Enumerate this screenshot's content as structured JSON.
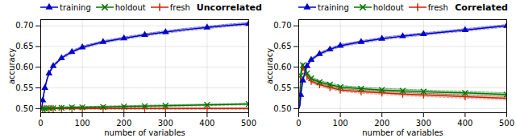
{
  "chart_data": [
    {
      "type": "line",
      "title": "Uncorrelated",
      "xlabel": "number of variables",
      "ylabel": "accuracy",
      "xlim": [
        0,
        500
      ],
      "xticks": [
        0,
        100,
        200,
        300,
        400,
        500
      ],
      "ylim": [
        0.49,
        0.715
      ],
      "yticks": [
        {
          "value": 0.5,
          "label": "0.50"
        },
        0.55,
        {
          "value": 0.6,
          "label": "0.60"
        },
        0.65,
        {
          "value": 0.7,
          "label": "0.70"
        }
      ],
      "grid": true,
      "legend": "upper left",
      "x": [
        1,
        2,
        3,
        4,
        5,
        7,
        10,
        15,
        20,
        30,
        50,
        75,
        100,
        150,
        200,
        250,
        300,
        350,
        400,
        450,
        500
      ],
      "marker_x": [
        5,
        10,
        20,
        30,
        50,
        75,
        100,
        150,
        200,
        250,
        300,
        400,
        500
      ],
      "series": [
        {
          "name": "training",
          "color": "#0000cc",
          "marker": "triangle",
          "values": [
            0.5,
            0.502,
            0.505,
            0.512,
            0.52,
            0.533,
            0.55,
            0.57,
            0.585,
            0.603,
            0.622,
            0.637,
            0.648,
            0.661,
            0.67,
            0.678,
            0.685,
            0.691,
            0.696,
            0.701,
            0.705
          ],
          "std": [
            0.001,
            0.001,
            0.002,
            0.002,
            0.002,
            0.002,
            0.002,
            0.002,
            0.003,
            0.003,
            0.003,
            0.003,
            0.003,
            0.003,
            0.003,
            0.003,
            0.003,
            0.003,
            0.003,
            0.003,
            0.003
          ],
          "marker_values": [
            0.52,
            0.55,
            0.585,
            0.603,
            0.622,
            0.637,
            0.648,
            0.661,
            0.67,
            0.678,
            0.685,
            0.696,
            0.705
          ]
        },
        {
          "name": "holdout",
          "color": "#007700",
          "marker": "x",
          "values": [
            0.5,
            0.5,
            0.5,
            0.5,
            0.5,
            0.5,
            0.5,
            0.5,
            0.501,
            0.501,
            0.502,
            0.503,
            0.503,
            0.504,
            0.505,
            0.506,
            0.507,
            0.508,
            0.509,
            0.51,
            0.511
          ],
          "std": [
            0.002,
            0.002,
            0.002,
            0.002,
            0.002,
            0.002,
            0.002,
            0.002,
            0.002,
            0.002,
            0.002,
            0.002,
            0.002,
            0.002,
            0.002,
            0.002,
            0.002,
            0.002,
            0.002,
            0.002,
            0.002
          ],
          "marker_values": [
            0.5,
            0.5,
            0.501,
            0.501,
            0.502,
            0.503,
            0.503,
            0.504,
            0.505,
            0.506,
            0.507,
            0.509,
            0.511
          ]
        },
        {
          "name": "fresh",
          "color": "#cc2200",
          "marker": "vline",
          "values": [
            0.5,
            0.5,
            0.5,
            0.5,
            0.5,
            0.5,
            0.5,
            0.5,
            0.5,
            0.5,
            0.5,
            0.5,
            0.5,
            0.5,
            0.5,
            0.5,
            0.5,
            0.5,
            0.5,
            0.5,
            0.5
          ],
          "std": [
            0.002,
            0.002,
            0.002,
            0.002,
            0.002,
            0.002,
            0.002,
            0.002,
            0.002,
            0.002,
            0.002,
            0.002,
            0.002,
            0.002,
            0.002,
            0.002,
            0.002,
            0.002,
            0.002,
            0.002,
            0.002
          ],
          "marker_values": [
            0.5,
            0.5,
            0.5,
            0.5,
            0.5,
            0.5,
            0.5,
            0.5,
            0.5,
            0.5,
            0.5,
            0.5,
            0.5
          ]
        }
      ]
    },
    {
      "type": "line",
      "title": "Correlated",
      "xlabel": "number of variables",
      "ylabel": "accuracy",
      "xlim": [
        0,
        500
      ],
      "xticks": [
        0,
        100,
        200,
        300,
        400,
        500
      ],
      "ylim": [
        0.49,
        0.715
      ],
      "yticks": [
        {
          "value": 0.5,
          "label": "0.50"
        },
        0.55,
        {
          "value": 0.6,
          "label": "0.60"
        },
        0.65,
        {
          "value": 0.7,
          "label": "0.70"
        }
      ],
      "grid": true,
      "legend": "upper left",
      "x": [
        1,
        2,
        3,
        4,
        5,
        7,
        10,
        15,
        20,
        30,
        50,
        75,
        100,
        150,
        200,
        250,
        300,
        350,
        400,
        450,
        500
      ],
      "marker_x": [
        5,
        10,
        20,
        30,
        50,
        75,
        100,
        150,
        200,
        250,
        300,
        400,
        500
      ],
      "series": [
        {
          "name": "training",
          "color": "#0000cc",
          "marker": "triangle",
          "values": [
            0.502,
            0.505,
            0.51,
            0.52,
            0.533,
            0.548,
            0.568,
            0.588,
            0.603,
            0.618,
            0.632,
            0.643,
            0.652,
            0.661,
            0.669,
            0.675,
            0.68,
            0.685,
            0.69,
            0.695,
            0.7
          ],
          "std": [
            0.001,
            0.001,
            0.002,
            0.002,
            0.002,
            0.002,
            0.002,
            0.002,
            0.003,
            0.003,
            0.003,
            0.003,
            0.003,
            0.003,
            0.003,
            0.003,
            0.003,
            0.003,
            0.003,
            0.003,
            0.003
          ],
          "marker_values": [
            0.533,
            0.568,
            0.603,
            0.618,
            0.632,
            0.643,
            0.652,
            0.661,
            0.669,
            0.675,
            0.68,
            0.69,
            0.7
          ]
        },
        {
          "name": "holdout",
          "color": "#007700",
          "marker": "x",
          "values": [
            0.502,
            0.51,
            0.528,
            0.553,
            0.58,
            0.603,
            0.605,
            0.597,
            0.585,
            0.573,
            0.564,
            0.558,
            0.552,
            0.548,
            0.545,
            0.543,
            0.541,
            0.539,
            0.538,
            0.536,
            0.534
          ],
          "std": [
            0.002,
            0.003,
            0.004,
            0.005,
            0.005,
            0.005,
            0.005,
            0.005,
            0.005,
            0.004,
            0.004,
            0.004,
            0.004,
            0.004,
            0.004,
            0.004,
            0.004,
            0.004,
            0.004,
            0.004,
            0.004
          ],
          "marker_values": [
            0.58,
            0.605,
            0.585,
            0.573,
            0.564,
            0.558,
            0.552,
            0.548,
            0.545,
            0.543,
            0.541,
            0.538,
            0.534
          ]
        },
        {
          "name": "fresh",
          "color": "#cc2200",
          "marker": "vline",
          "values": [
            0.502,
            0.508,
            0.523,
            0.547,
            0.573,
            0.596,
            0.6,
            0.592,
            0.578,
            0.566,
            0.558,
            0.551,
            0.545,
            0.541,
            0.538,
            0.535,
            0.533,
            0.531,
            0.529,
            0.527,
            0.525
          ],
          "std": [
            0.002,
            0.003,
            0.004,
            0.005,
            0.005,
            0.005,
            0.005,
            0.005,
            0.005,
            0.004,
            0.004,
            0.004,
            0.004,
            0.004,
            0.004,
            0.004,
            0.004,
            0.004,
            0.004,
            0.004,
            0.004
          ],
          "marker_values": [
            0.573,
            0.6,
            0.578,
            0.566,
            0.558,
            0.551,
            0.545,
            0.541,
            0.538,
            0.535,
            0.533,
            0.529,
            0.525
          ]
        }
      ]
    }
  ]
}
